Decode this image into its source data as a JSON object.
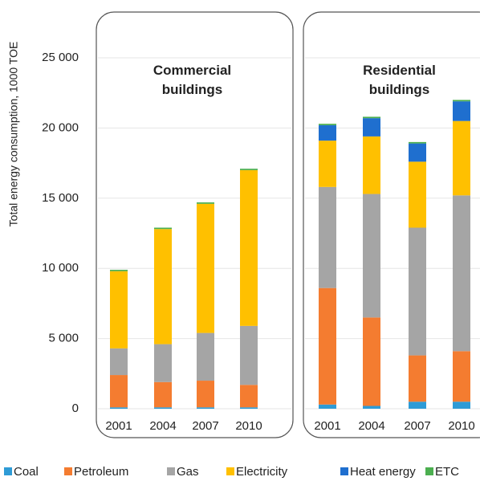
{
  "chart_data": [
    {
      "type": "bar",
      "stacked": true,
      "title": "Commercial buildings",
      "ylabel": "Total energy consumption, 1000 TOE",
      "categories": [
        "2001",
        "2004",
        "2007",
        "2010"
      ],
      "ylim": [
        0,
        25000
      ],
      "yticks": [
        0,
        {
          "value": 5000,
          "label": "5 000"
        },
        {
          "value": 10000,
          "label": "10 000"
        },
        {
          "value": 15000,
          "label": "15 000"
        },
        {
          "value": 20000,
          "label": "20 000"
        },
        {
          "value": 25000,
          "label": "25 000"
        }
      ],
      "grid": true,
      "series": [
        {
          "name": "Coal",
          "color": "#2e9bd6",
          "values": [
            100,
            100,
            100,
            100
          ]
        },
        {
          "name": "Petroleum",
          "color": "#f47c30",
          "values": [
            2300,
            1800,
            1900,
            1600
          ]
        },
        {
          "name": "Gas",
          "color": "#a5a5a5",
          "values": [
            1900,
            2700,
            3400,
            4200
          ]
        },
        {
          "name": "Electricity",
          "color": "#ffc000",
          "values": [
            5500,
            8200,
            9200,
            11100
          ]
        },
        {
          "name": "Heat energy",
          "color": "#1f6fcf",
          "values": [
            0,
            0,
            0,
            0
          ]
        },
        {
          "name": "ETC",
          "color": "#4caf50",
          "values": [
            100,
            100,
            100,
            100
          ]
        }
      ]
    },
    {
      "type": "bar",
      "stacked": true,
      "title": "Residential buildings",
      "categories": [
        "2001",
        "2004",
        "2007",
        "2010"
      ],
      "ylim": [
        0,
        25000
      ],
      "grid": true,
      "series": [
        {
          "color": "#2e9bd6",
          "values": [
            300,
            200,
            500,
            500
          ]
        },
        {
          "color": "#f47c30",
          "values": [
            8300,
            6300,
            3300,
            3600
          ]
        },
        {
          "color": "#a5a5a5",
          "values": [
            7200,
            8800,
            9100,
            11100
          ]
        },
        {
          "color": "#ffc000",
          "values": [
            3300,
            4100,
            4700,
            5300
          ]
        },
        {
          "color": "#1f6fcf",
          "values": [
            1100,
            1300,
            1300,
            1400
          ]
        },
        {
          "color": "#4caf50",
          "values": [
            100,
            100,
            100,
            100
          ]
        }
      ]
    }
  ]
}
